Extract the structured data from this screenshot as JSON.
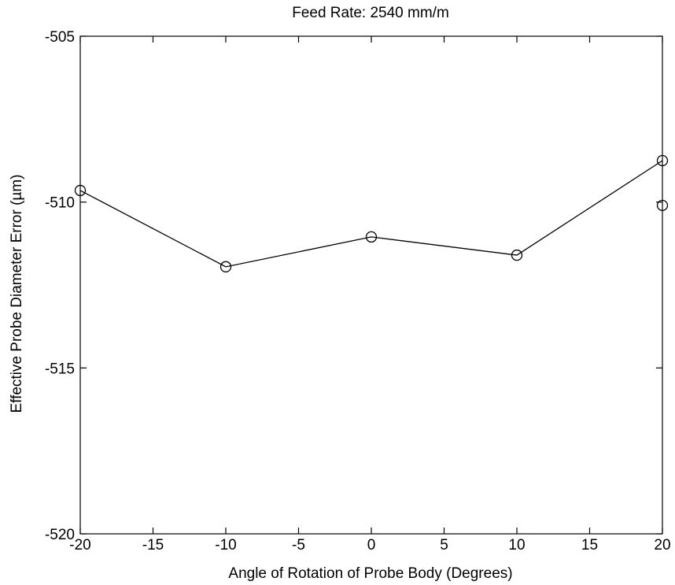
{
  "chart_data": {
    "type": "line",
    "title": "Feed Rate: 2540 mm/m",
    "xlabel": "Angle of Rotation of Probe Body (Degrees)",
    "ylabel": "Effective Probe Diameter Error (µm)",
    "xlim": [
      -20,
      20
    ],
    "ylim": [
      -520,
      -505
    ],
    "xticks": [
      -20,
      -15,
      -10,
      -5,
      0,
      5,
      10,
      15,
      20
    ],
    "yticks": [
      -520,
      -515,
      -510,
      -505
    ],
    "grid": false,
    "series": [
      {
        "marker": "circle",
        "line": true,
        "points": [
          {
            "x": -20,
            "y": -509.65
          },
          {
            "x": -10,
            "y": -511.95
          },
          {
            "x": 0,
            "y": -511.05
          },
          {
            "x": 10,
            "y": -511.6
          },
          {
            "x": 20,
            "y": -508.75
          }
        ]
      },
      {
        "marker": "circle",
        "line": false,
        "points": [
          {
            "x": 20,
            "y": -510.1
          }
        ]
      }
    ]
  }
}
